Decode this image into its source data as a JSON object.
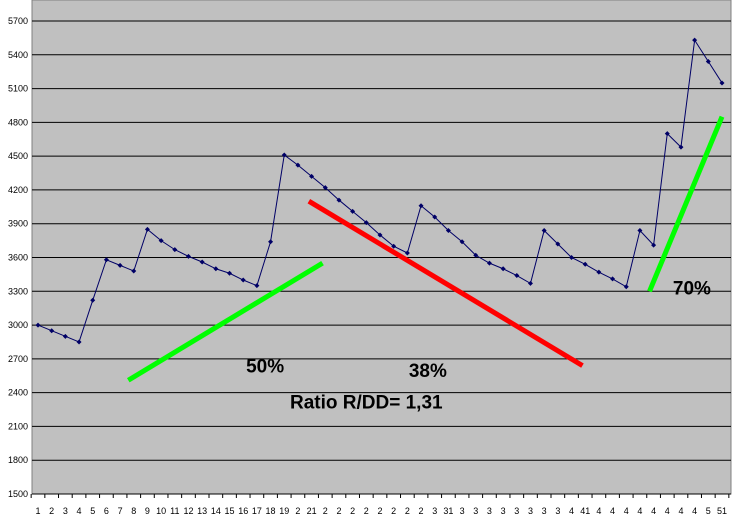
{
  "chart_data": {
    "type": "line",
    "title": "",
    "xlabel": "",
    "ylabel": "",
    "ylim": [
      1500,
      5700
    ],
    "yticks": [
      1500,
      1800,
      2100,
      2400,
      2700,
      3000,
      3300,
      3600,
      3900,
      4200,
      4500,
      4800,
      5100,
      5400,
      5700
    ],
    "grid": true,
    "legend": "none",
    "plot_background": "#c0c0c0",
    "x_tick_labels": [
      "1",
      "2",
      "3",
      "4",
      "5",
      "6",
      "7",
      "8",
      "9",
      "10",
      "11",
      "12",
      "13",
      "14",
      "15",
      "16",
      "17",
      "18",
      "19",
      "2",
      "21",
      "2",
      "2",
      "2",
      "2",
      "2",
      "2",
      "2",
      "2",
      "3",
      "31",
      "3",
      "3",
      "3",
      "3",
      "3",
      "3",
      "3",
      "3",
      "4",
      "41",
      "4",
      "4",
      "4",
      "4",
      "4",
      "4",
      "4",
      "4",
      "5",
      "51"
    ],
    "series": [
      {
        "color": "#000066",
        "x": [
          1,
          2,
          3,
          4,
          5,
          6,
          7,
          8,
          9,
          10,
          11,
          12,
          13,
          14,
          15,
          16,
          17,
          18,
          19,
          20,
          21,
          22,
          23,
          24,
          25,
          26,
          27,
          28,
          29,
          30,
          31,
          32,
          33,
          34,
          35,
          36,
          37,
          38,
          39,
          40,
          41,
          42,
          43,
          44,
          45,
          46,
          47,
          48,
          49,
          50,
          51
        ],
        "values": [
          3000,
          2950,
          2900,
          2850,
          3220,
          3580,
          3530,
          3480,
          3850,
          3750,
          3670,
          3610,
          3560,
          3500,
          3460,
          3400,
          3350,
          3740,
          4510,
          4420,
          4320,
          4220,
          4110,
          4010,
          3910,
          3800,
          3700,
          3640,
          4060,
          3960,
          3840,
          3740,
          3620,
          3550,
          3500,
          3440,
          3370,
          3840,
          3720,
          3600,
          3540,
          3470,
          3410,
          3340,
          3840,
          3710,
          4700,
          4580,
          5530,
          5340,
          5150
        ]
      }
    ],
    "annotations": {
      "trend_lines": [
        {
          "color": "#00ff00",
          "from": [
            7.6,
            2510
          ],
          "to": [
            21.8,
            3550
          ]
        },
        {
          "color": "#ff0000",
          "from": [
            20.8,
            4100
          ],
          "to": [
            40.8,
            2640
          ]
        },
        {
          "color": "#00ff00",
          "from": [
            45.7,
            3300
          ],
          "to": [
            51.0,
            4850
          ]
        }
      ],
      "labels": [
        {
          "text": "50%",
          "at": [
            17.6,
            2580
          ]
        },
        {
          "text": "38%",
          "at": [
            29.5,
            2540
          ]
        },
        {
          "text": "70%",
          "at": [
            48.8,
            3270
          ]
        },
        {
          "text": "Ratio R/DD= 1,31",
          "at": [
            25.0,
            2260
          ]
        }
      ]
    }
  }
}
